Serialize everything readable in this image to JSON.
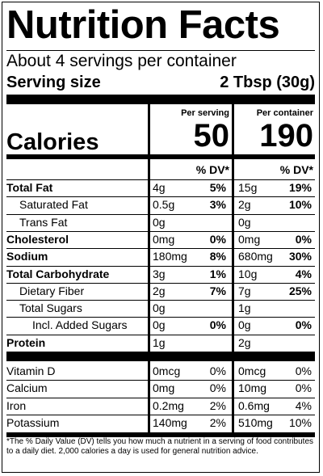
{
  "title": "Nutrition Facts",
  "servings_per_container": "About 4 servings per container",
  "serving_size_label": "Serving size",
  "serving_size_value": "2 Tbsp (30g)",
  "columns": {
    "per_serving": "Per serving",
    "per_container": "Per container"
  },
  "calories": {
    "label": "Calories",
    "per_serving": "50",
    "per_container": "190"
  },
  "dv_header": "% DV*",
  "rows": [
    {
      "name": "Total Fat",
      "bold": true,
      "indent": 0,
      "s_amt": "4g",
      "s_dv": "5%",
      "c_amt": "15g",
      "c_dv": "19%"
    },
    {
      "name": "Saturated Fat",
      "bold": false,
      "indent": 1,
      "s_amt": "0.5g",
      "s_dv": "3%",
      "c_amt": "2g",
      "c_dv": "10%"
    },
    {
      "name": "Trans Fat",
      "bold": false,
      "indent": 1,
      "s_amt": "0g",
      "s_dv": "",
      "c_amt": "0g",
      "c_dv": ""
    },
    {
      "name": "Cholesterol",
      "bold": true,
      "indent": 0,
      "s_amt": "0mg",
      "s_dv": "0%",
      "c_amt": "0mg",
      "c_dv": "0%"
    },
    {
      "name": "Sodium",
      "bold": true,
      "indent": 0,
      "s_amt": "180mg",
      "s_dv": "8%",
      "c_amt": "680mg",
      "c_dv": "30%"
    },
    {
      "name": "Total Carbohydrate",
      "bold": true,
      "indent": 0,
      "s_amt": "3g",
      "s_dv": "1%",
      "c_amt": "10g",
      "c_dv": "4%"
    },
    {
      "name": "Dietary Fiber",
      "bold": false,
      "indent": 1,
      "s_amt": "2g",
      "s_dv": "7%",
      "c_amt": "7g",
      "c_dv": "25%"
    },
    {
      "name": "Total Sugars",
      "bold": false,
      "indent": 1,
      "s_amt": "0g",
      "s_dv": "",
      "c_amt": "1g",
      "c_dv": ""
    },
    {
      "name": "Incl. Added Sugars",
      "bold": false,
      "indent": 2,
      "s_amt": "0g",
      "s_dv": "0%",
      "c_amt": "0g",
      "c_dv": "0%"
    },
    {
      "name": "Protein",
      "bold": true,
      "indent": 0,
      "s_amt": "1g",
      "s_dv": "",
      "c_amt": "2g",
      "c_dv": ""
    }
  ],
  "vitamins": [
    {
      "name": "Vitamin D",
      "s_amt": "0mcg",
      "s_dv": "0%",
      "c_amt": "0mcg",
      "c_dv": "0%"
    },
    {
      "name": "Calcium",
      "s_amt": "0mg",
      "s_dv": "0%",
      "c_amt": "10mg",
      "c_dv": "0%"
    },
    {
      "name": "Iron",
      "s_amt": "0.2mg",
      "s_dv": "2%",
      "c_amt": "0.6mg",
      "c_dv": "4%"
    },
    {
      "name": "Potassium",
      "s_amt": "140mg",
      "s_dv": "2%",
      "c_amt": "510mg",
      "c_dv": "10%"
    }
  ],
  "footnote": "*The % Daily Value (DV) tells you how much a nutrient in a serving of food contributes to a daily diet. 2,000 calories a day is used for general nutrition advice."
}
